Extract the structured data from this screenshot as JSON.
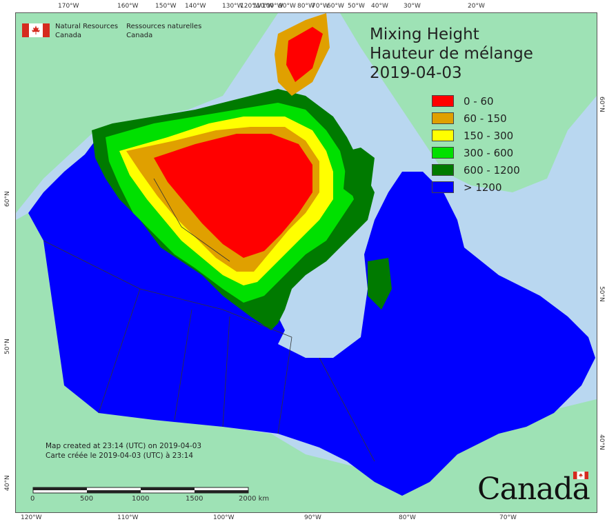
{
  "map_title": {
    "line1": "Mixing Height",
    "line2": "Hauteur de mélange",
    "date": "2019-04-03"
  },
  "agency": {
    "english_line1": "Natural Resources",
    "english_line2": "Canada",
    "french_line1": "Ressources naturelles",
    "french_line2": "Canada"
  },
  "legend": [
    {
      "label": "0 - 60",
      "color": "#ff0000"
    },
    {
      "label": "60 - 150",
      "color": "#e0a000"
    },
    {
      "label": "150 - 300",
      "color": "#ffff00"
    },
    {
      "label": "300 - 600",
      "color": "#00e000"
    },
    {
      "label": "600 - 1200",
      "color": "#007a00"
    },
    {
      "label": "> 1200",
      "color": "#0000ff"
    }
  ],
  "credits": {
    "english": "Map created at 23:14 (UTC) on 2019-04-03",
    "french": "Carte créée le 2019-04-03 (UTC) à 23:14"
  },
  "scale_bar": {
    "ticks": [
      "0",
      "500",
      "1000",
      "1500",
      "2000 km"
    ]
  },
  "graticule": {
    "top": [
      "170°W",
      "160°W",
      "150°W",
      "140°W",
      "130°W",
      "120°W",
      "110°W",
      "100°W",
      "90°W",
      "80°W",
      "70°W",
      "60°W",
      "50°W",
      "40°W",
      "30°W",
      "20°W"
    ],
    "bottom": [
      "120°W",
      "110°W",
      "100°W",
      "90°W",
      "80°W",
      "70°W"
    ],
    "left": [
      "60°N",
      "50°N",
      "40°N"
    ],
    "right": [
      "60°N",
      "50°N",
      "40°N"
    ]
  },
  "wordmark": "Canada",
  "colors": {
    "water": "#b9d7f0",
    "foreign_land": "#9ee2b5",
    "boundary": "#333333"
  }
}
